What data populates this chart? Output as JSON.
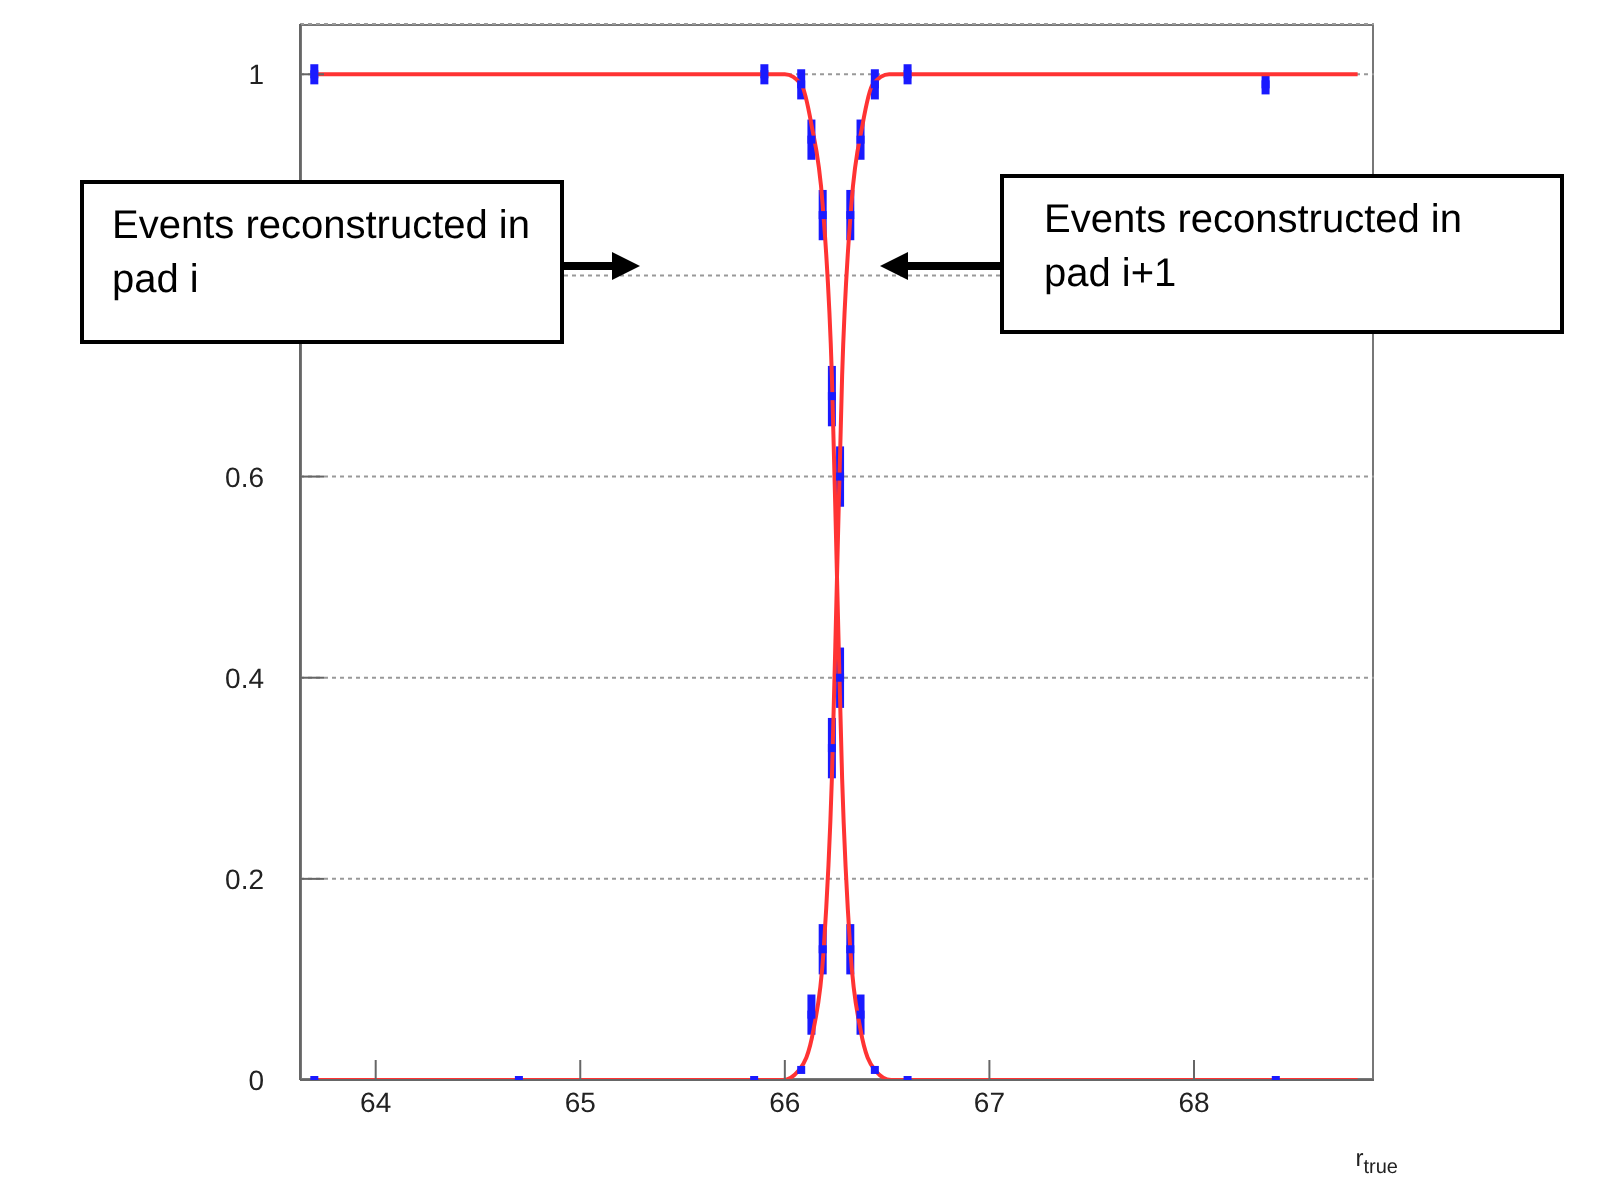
{
  "chart_data": {
    "type": "line",
    "xlabel": "r$_{true}$",
    "xlim": [
      63.63,
      68.88
    ],
    "xticks": [
      64,
      65,
      66,
      67,
      68
    ],
    "ylim": [
      0,
      1.05
    ],
    "yticks": [
      0,
      0.2,
      0.4,
      0.6,
      {
        "value": 0.8,
        "label": null
      },
      1
    ],
    "grid": "y",
    "legend": false,
    "line_style": "solid",
    "annotations": [
      "Events reconstructed in pad i",
      "Events reconstructed in pad i+1"
    ],
    "series": [
      {
        "type": "scatter",
        "marker": "square",
        "color": "#1a1aff",
        "x": [
          63.7,
          65.9,
          66.08,
          66.13,
          66.185,
          66.23,
          66.27,
          66.32,
          66.37,
          66.44,
          66.6,
          68.4
        ],
        "values": [
          1,
          1,
          0.99,
          0.935,
          0.86,
          0.68,
          0.4,
          0.13,
          0.065,
          0.01,
          0,
          0
        ],
        "errors": [
          0.01,
          0.01,
          0.015,
          0.02,
          0.025,
          0.03,
          0.03,
          0.025,
          0.02,
          null,
          null,
          null
        ]
      },
      {
        "type": "scatter",
        "marker": "square",
        "color": "#1a1aff",
        "x": [
          63.7,
          64.7,
          65.85,
          66.08,
          66.13,
          66.185,
          66.23,
          66.27,
          66.32,
          66.37,
          66.44,
          66.6,
          68.35
        ],
        "values": [
          0,
          0,
          0,
          0.01,
          0.065,
          0.13,
          0.33,
          0.6,
          0.86,
          0.935,
          0.99,
          1,
          0.99
        ],
        "errors": [
          null,
          null,
          null,
          null,
          0.02,
          0.025,
          0.03,
          0.03,
          0.025,
          0.02,
          0.015,
          0.01,
          0.01
        ]
      },
      {
        "marker": "none",
        "color": "#ff3333",
        "x": [
          63.7,
          66.0,
          66.08,
          66.13,
          66.185,
          66.23,
          66.255,
          66.28,
          66.32,
          66.37,
          66.44,
          66.52,
          68.8
        ],
        "values": [
          1,
          1,
          0.99,
          0.95,
          0.87,
          0.7,
          0.5,
          0.3,
          0.13,
          0.05,
          0.01,
          0,
          0
        ]
      },
      {
        "marker": "none",
        "color": "#ff3333",
        "x": [
          63.7,
          65.99,
          66.07,
          66.14,
          66.19,
          66.23,
          66.255,
          66.28,
          66.325,
          66.38,
          66.43,
          66.51,
          68.8
        ],
        "values": [
          0,
          0,
          0.01,
          0.05,
          0.13,
          0.3,
          0.5,
          0.7,
          0.87,
          0.95,
          0.99,
          1,
          1
        ]
      }
    ]
  }
}
